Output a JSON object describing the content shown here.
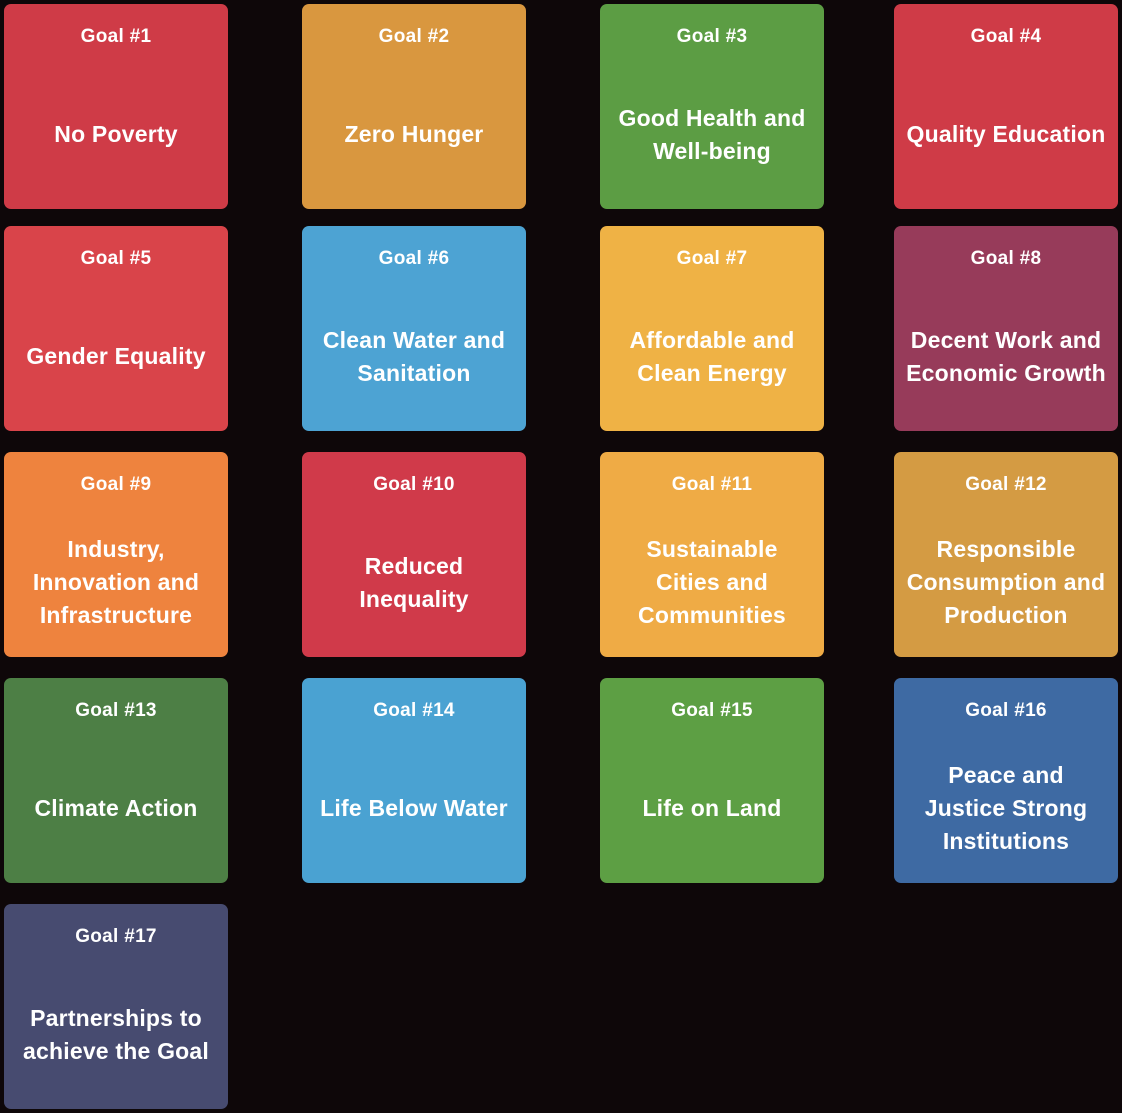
{
  "goals": [
    {
      "number": "Goal #1",
      "name": "No Poverty",
      "color": "#cf3b47"
    },
    {
      "number": "Goal #2",
      "name": "Zero Hunger",
      "color": "#d9973f"
    },
    {
      "number": "Goal #3",
      "name": "Good Health and Well-being",
      "color": "#5c9d44"
    },
    {
      "number": "Goal #4",
      "name": "Quality Education",
      "color": "#cf3b47"
    },
    {
      "number": "Goal #5",
      "name": "Gender Equality",
      "color": "#d9444a"
    },
    {
      "number": "Goal #6",
      "name": "Clean Water and Sanitation",
      "color": "#4da3d3"
    },
    {
      "number": "Goal #7",
      "name": "Affordable and Clean Energy",
      "color": "#efb245"
    },
    {
      "number": "Goal #8",
      "name": "Decent Work and Economic Growth",
      "color": "#973b5a"
    },
    {
      "number": "Goal #9",
      "name": "Industry, Innovation and Infrastructure",
      "color": "#ee833e"
    },
    {
      "number": "Goal #10",
      "name": "Reduced Inequality",
      "color": "#d03a4a"
    },
    {
      "number": "Goal #11",
      "name": "Sustainable Cities and Communities",
      "color": "#efab45"
    },
    {
      "number": "Goal #12",
      "name": "Responsible Consumption and Production",
      "color": "#d49b43"
    },
    {
      "number": "Goal #13",
      "name": "Climate Action",
      "color": "#4d7f45"
    },
    {
      "number": "Goal #14",
      "name": "Life Below Water",
      "color": "#4aa2d2"
    },
    {
      "number": "Goal #15",
      "name": "Life on Land",
      "color": "#5d9f44"
    },
    {
      "number": "Goal #16",
      "name": "Peace and Justice Strong Institutions",
      "color": "#3e6aa3"
    },
    {
      "number": "Goal #17",
      "name": "Partnerships to achieve the Goal",
      "color": "#474b70"
    }
  ]
}
